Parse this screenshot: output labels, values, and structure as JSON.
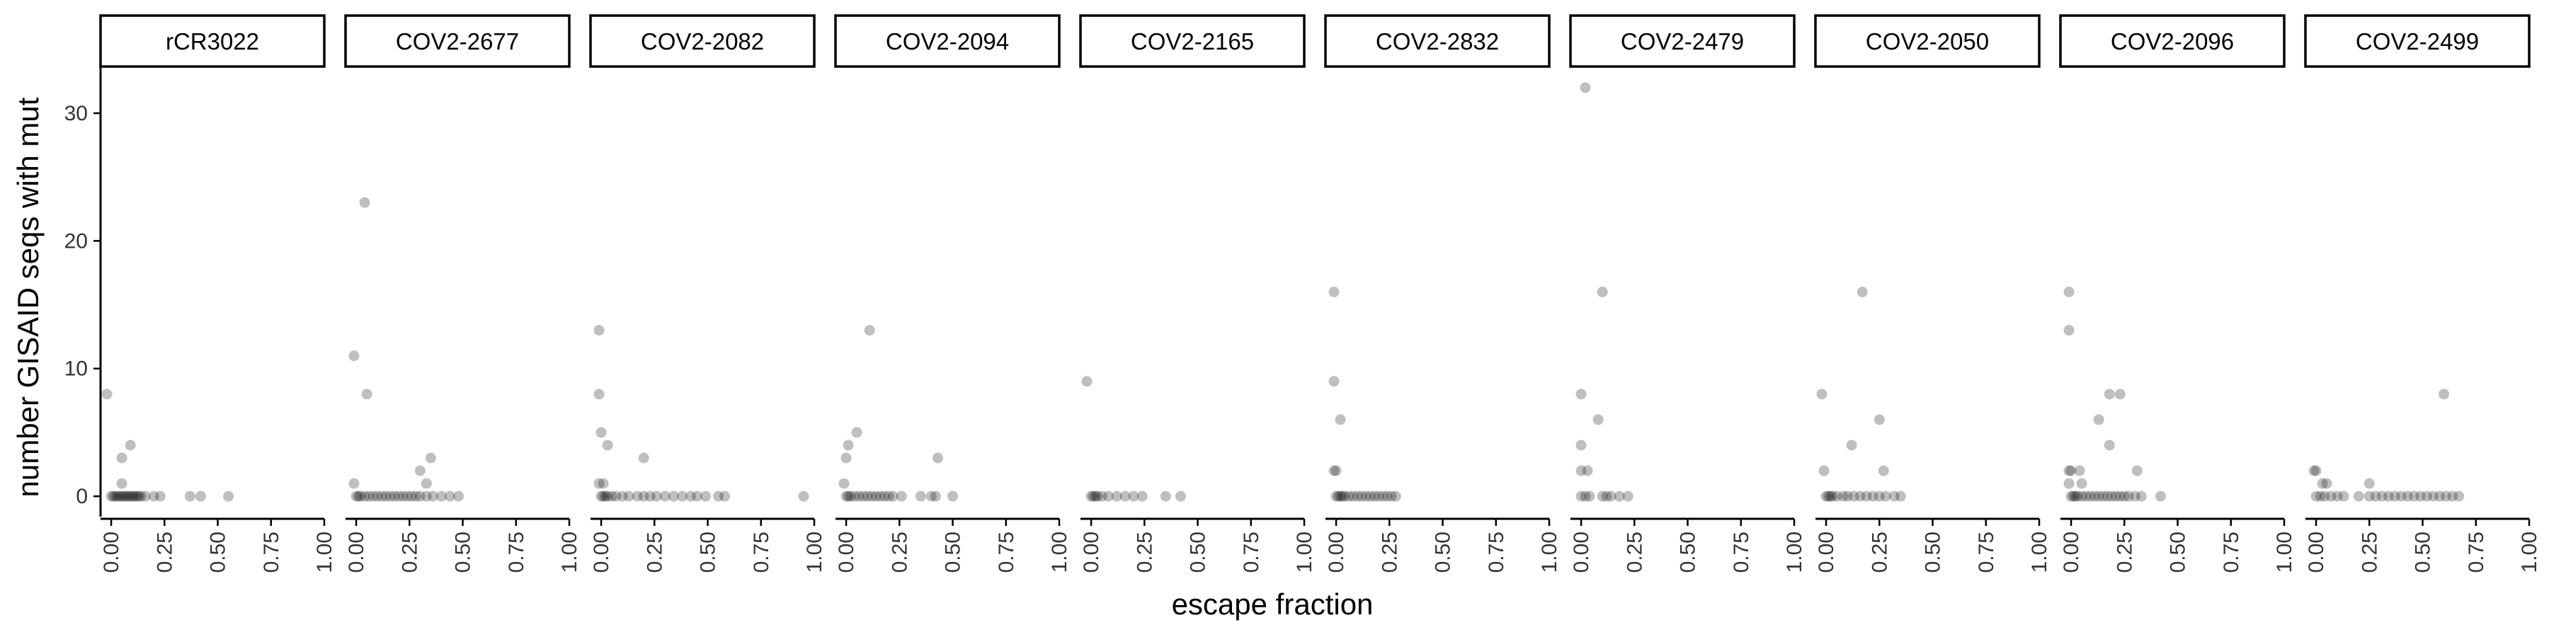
{
  "chart_data": {
    "type": "scatter",
    "title": "",
    "xlabel": "escape fraction",
    "ylabel": "number GISAID seqs with mut",
    "xlim": [
      -0.05,
      1.0
    ],
    "ylim": [
      -1.6,
      33.6
    ],
    "x_ticks": [
      0.0,
      0.25,
      0.5,
      0.75,
      1.0
    ],
    "x_tick_labels": [
      "0.00",
      "0.25",
      "0.50",
      "0.75",
      "1.00"
    ],
    "y_ticks": [
      0,
      10,
      20,
      30
    ],
    "y_tick_labels": [
      "0",
      "10",
      "20",
      "30"
    ],
    "grid": false,
    "legend": "none",
    "point_color": "#000000",
    "point_alpha": 0.25,
    "panels": [
      {
        "name": "rCR3022",
        "points": [
          [
            -0.02,
            8
          ],
          [
            0.05,
            3
          ],
          [
            0.05,
            1
          ],
          [
            0.09,
            4
          ],
          [
            0.0,
            0
          ],
          [
            0.01,
            0
          ],
          [
            0.02,
            0
          ],
          [
            0.03,
            0
          ],
          [
            0.04,
            0
          ],
          [
            0.05,
            0
          ],
          [
            0.06,
            0
          ],
          [
            0.07,
            0
          ],
          [
            0.08,
            0
          ],
          [
            0.09,
            0
          ],
          [
            0.1,
            0
          ],
          [
            0.11,
            0
          ],
          [
            0.12,
            0
          ],
          [
            0.13,
            0
          ],
          [
            0.14,
            0
          ],
          [
            0.16,
            0
          ],
          [
            0.2,
            0
          ],
          [
            0.23,
            0
          ],
          [
            0.37,
            0
          ],
          [
            0.42,
            0
          ],
          [
            0.55,
            0
          ]
        ]
      },
      {
        "name": "COV2-2677",
        "points": [
          [
            -0.01,
            11
          ],
          [
            0.04,
            23
          ],
          [
            0.05,
            8
          ],
          [
            -0.01,
            1
          ],
          [
            0.3,
            2
          ],
          [
            0.35,
            3
          ],
          [
            0.33,
            1
          ],
          [
            0.0,
            0
          ],
          [
            0.01,
            0
          ],
          [
            0.02,
            0
          ],
          [
            0.04,
            0
          ],
          [
            0.06,
            0
          ],
          [
            0.08,
            0
          ],
          [
            0.1,
            0
          ],
          [
            0.12,
            0
          ],
          [
            0.14,
            0
          ],
          [
            0.16,
            0
          ],
          [
            0.18,
            0
          ],
          [
            0.2,
            0
          ],
          [
            0.22,
            0
          ],
          [
            0.24,
            0
          ],
          [
            0.26,
            0
          ],
          [
            0.28,
            0
          ],
          [
            0.3,
            0
          ],
          [
            0.33,
            0
          ],
          [
            0.36,
            0
          ],
          [
            0.4,
            0
          ],
          [
            0.44,
            0
          ],
          [
            0.48,
            0
          ]
        ]
      },
      {
        "name": "COV2-2082",
        "points": [
          [
            -0.01,
            13
          ],
          [
            -0.01,
            8
          ],
          [
            0.0,
            5
          ],
          [
            0.03,
            4
          ],
          [
            0.2,
            3
          ],
          [
            -0.01,
            1
          ],
          [
            0.01,
            1
          ],
          [
            0.0,
            0
          ],
          [
            0.01,
            0
          ],
          [
            0.02,
            0
          ],
          [
            0.03,
            0
          ],
          [
            0.05,
            0
          ],
          [
            0.07,
            0
          ],
          [
            0.1,
            0
          ],
          [
            0.13,
            0
          ],
          [
            0.17,
            0
          ],
          [
            0.2,
            0
          ],
          [
            0.23,
            0
          ],
          [
            0.26,
            0
          ],
          [
            0.3,
            0
          ],
          [
            0.34,
            0
          ],
          [
            0.38,
            0
          ],
          [
            0.42,
            0
          ],
          [
            0.45,
            0
          ],
          [
            0.49,
            0
          ],
          [
            0.55,
            0
          ],
          [
            0.58,
            0
          ],
          [
            0.95,
            0
          ]
        ]
      },
      {
        "name": "COV2-2094",
        "points": [
          [
            0.0,
            3
          ],
          [
            0.01,
            4
          ],
          [
            0.05,
            5
          ],
          [
            0.11,
            13
          ],
          [
            0.43,
            3
          ],
          [
            -0.01,
            1
          ],
          [
            0.0,
            0
          ],
          [
            0.01,
            0
          ],
          [
            0.02,
            0
          ],
          [
            0.04,
            0
          ],
          [
            0.06,
            0
          ],
          [
            0.08,
            0
          ],
          [
            0.1,
            0
          ],
          [
            0.12,
            0
          ],
          [
            0.14,
            0
          ],
          [
            0.16,
            0
          ],
          [
            0.18,
            0
          ],
          [
            0.2,
            0
          ],
          [
            0.22,
            0
          ],
          [
            0.26,
            0
          ],
          [
            0.35,
            0
          ],
          [
            0.4,
            0
          ],
          [
            0.42,
            0
          ],
          [
            0.5,
            0
          ]
        ]
      },
      {
        "name": "COV2-2165",
        "points": [
          [
            -0.02,
            9
          ],
          [
            0.0,
            0
          ],
          [
            0.01,
            0
          ],
          [
            0.02,
            0
          ],
          [
            0.03,
            0
          ],
          [
            0.05,
            0
          ],
          [
            0.08,
            0
          ],
          [
            0.12,
            0
          ],
          [
            0.16,
            0
          ],
          [
            0.2,
            0
          ],
          [
            0.24,
            0
          ],
          [
            0.35,
            0
          ],
          [
            0.42,
            0
          ]
        ]
      },
      {
        "name": "COV2-2832",
        "points": [
          [
            -0.01,
            16
          ],
          [
            -0.01,
            9
          ],
          [
            0.02,
            6
          ],
          [
            -0.01,
            2
          ],
          [
            0.0,
            2
          ],
          [
            0.0,
            0
          ],
          [
            0.01,
            0
          ],
          [
            0.02,
            0
          ],
          [
            0.03,
            0
          ],
          [
            0.04,
            0
          ],
          [
            0.06,
            0
          ],
          [
            0.08,
            0
          ],
          [
            0.1,
            0
          ],
          [
            0.12,
            0
          ],
          [
            0.14,
            0
          ],
          [
            0.16,
            0
          ],
          [
            0.18,
            0
          ],
          [
            0.2,
            0
          ],
          [
            0.22,
            0
          ],
          [
            0.24,
            0
          ],
          [
            0.26,
            0
          ],
          [
            0.28,
            0
          ]
        ]
      },
      {
        "name": "COV2-2479",
        "points": [
          [
            0.02,
            32
          ],
          [
            0.1,
            16
          ],
          [
            0.0,
            8
          ],
          [
            0.08,
            6
          ],
          [
            0.0,
            4
          ],
          [
            0.0,
            2
          ],
          [
            0.03,
            2
          ],
          [
            0.0,
            0
          ],
          [
            0.02,
            0
          ],
          [
            0.04,
            0
          ],
          [
            0.1,
            0
          ],
          [
            0.12,
            0
          ],
          [
            0.14,
            0
          ],
          [
            0.18,
            0
          ],
          [
            0.22,
            0
          ]
        ]
      },
      {
        "name": "COV2-2050",
        "points": [
          [
            -0.02,
            8
          ],
          [
            0.17,
            16
          ],
          [
            0.12,
            4
          ],
          [
            0.25,
            6
          ],
          [
            -0.01,
            2
          ],
          [
            0.27,
            2
          ],
          [
            0.0,
            0
          ],
          [
            0.01,
            0
          ],
          [
            0.02,
            0
          ],
          [
            0.03,
            0
          ],
          [
            0.05,
            0
          ],
          [
            0.08,
            0
          ],
          [
            0.1,
            0
          ],
          [
            0.13,
            0
          ],
          [
            0.16,
            0
          ],
          [
            0.19,
            0
          ],
          [
            0.22,
            0
          ],
          [
            0.25,
            0
          ],
          [
            0.28,
            0
          ],
          [
            0.32,
            0
          ],
          [
            0.35,
            0
          ]
        ]
      },
      {
        "name": "COV2-2096",
        "points": [
          [
            -0.01,
            16
          ],
          [
            -0.01,
            13
          ],
          [
            0.13,
            6
          ],
          [
            0.18,
            8
          ],
          [
            0.23,
            8
          ],
          [
            0.18,
            4
          ],
          [
            0.04,
            2
          ],
          [
            0.31,
            2
          ],
          [
            -0.01,
            2
          ],
          [
            0.0,
            2
          ],
          [
            -0.01,
            1
          ],
          [
            0.05,
            1
          ],
          [
            0.0,
            0
          ],
          [
            0.01,
            0
          ],
          [
            0.02,
            0
          ],
          [
            0.03,
            0
          ],
          [
            0.05,
            0
          ],
          [
            0.07,
            0
          ],
          [
            0.09,
            0
          ],
          [
            0.11,
            0
          ],
          [
            0.13,
            0
          ],
          [
            0.15,
            0
          ],
          [
            0.17,
            0
          ],
          [
            0.19,
            0
          ],
          [
            0.21,
            0
          ],
          [
            0.23,
            0
          ],
          [
            0.25,
            0
          ],
          [
            0.27,
            0
          ],
          [
            0.3,
            0
          ],
          [
            0.33,
            0
          ],
          [
            0.42,
            0
          ]
        ]
      },
      {
        "name": "COV2-2499",
        "points": [
          [
            -0.01,
            2
          ],
          [
            0.0,
            2
          ],
          [
            0.6,
            8
          ],
          [
            0.03,
            1
          ],
          [
            0.05,
            1
          ],
          [
            0.25,
            1
          ],
          [
            0.0,
            0
          ],
          [
            0.02,
            0
          ],
          [
            0.04,
            0
          ],
          [
            0.07,
            0
          ],
          [
            0.1,
            0
          ],
          [
            0.13,
            0
          ],
          [
            0.2,
            0
          ],
          [
            0.25,
            0
          ],
          [
            0.28,
            0
          ],
          [
            0.31,
            0
          ],
          [
            0.34,
            0
          ],
          [
            0.37,
            0
          ],
          [
            0.4,
            0
          ],
          [
            0.43,
            0
          ],
          [
            0.46,
            0
          ],
          [
            0.49,
            0
          ],
          [
            0.52,
            0
          ],
          [
            0.55,
            0
          ],
          [
            0.58,
            0
          ],
          [
            0.61,
            0
          ],
          [
            0.64,
            0
          ],
          [
            0.67,
            0
          ]
        ]
      }
    ]
  }
}
